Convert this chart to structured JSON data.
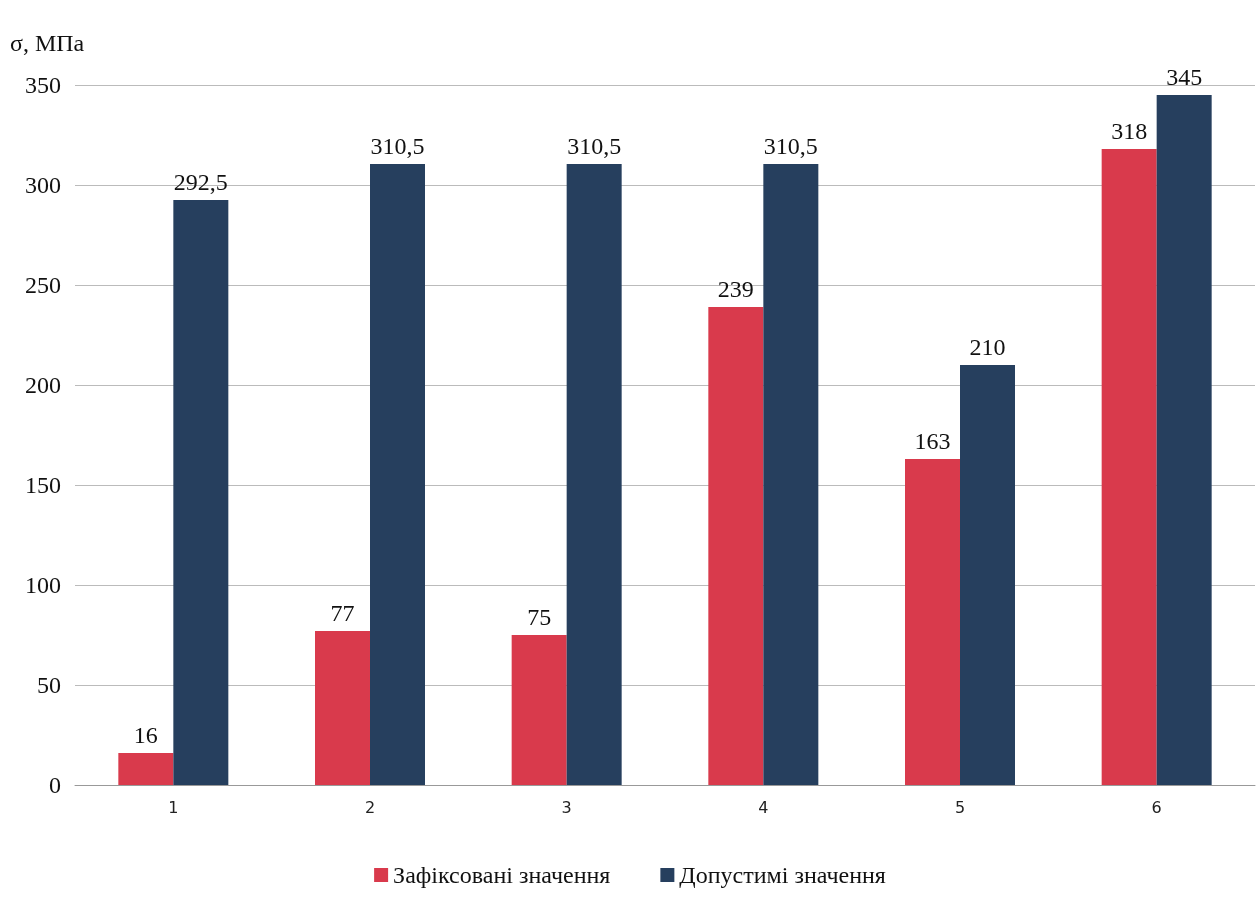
{
  "chart_data": {
    "type": "bar",
    "ylabel": "σ, МПа",
    "categories": [
      "1",
      "2",
      "3",
      "4",
      "5",
      "6"
    ],
    "series": [
      {
        "name": "Зафіксовані значення",
        "color": "#d93a4c",
        "values": [
          16,
          77,
          75,
          239,
          163,
          318
        ],
        "value_labels": [
          "16",
          "77",
          "75",
          "239",
          "163",
          "318"
        ]
      },
      {
        "name": "Допустимі значення",
        "color": "#263f5e",
        "values": [
          292.5,
          310.5,
          310.5,
          310.5,
          210,
          345
        ],
        "value_labels": [
          "292,5",
          "310,5",
          "310,5",
          "310,5",
          "210",
          "345"
        ]
      }
    ],
    "ylim": [
      0,
      350
    ],
    "yticks": [
      0,
      50,
      100,
      150,
      200,
      250,
      300,
      350
    ],
    "grid": "y",
    "legend": "bottom"
  }
}
